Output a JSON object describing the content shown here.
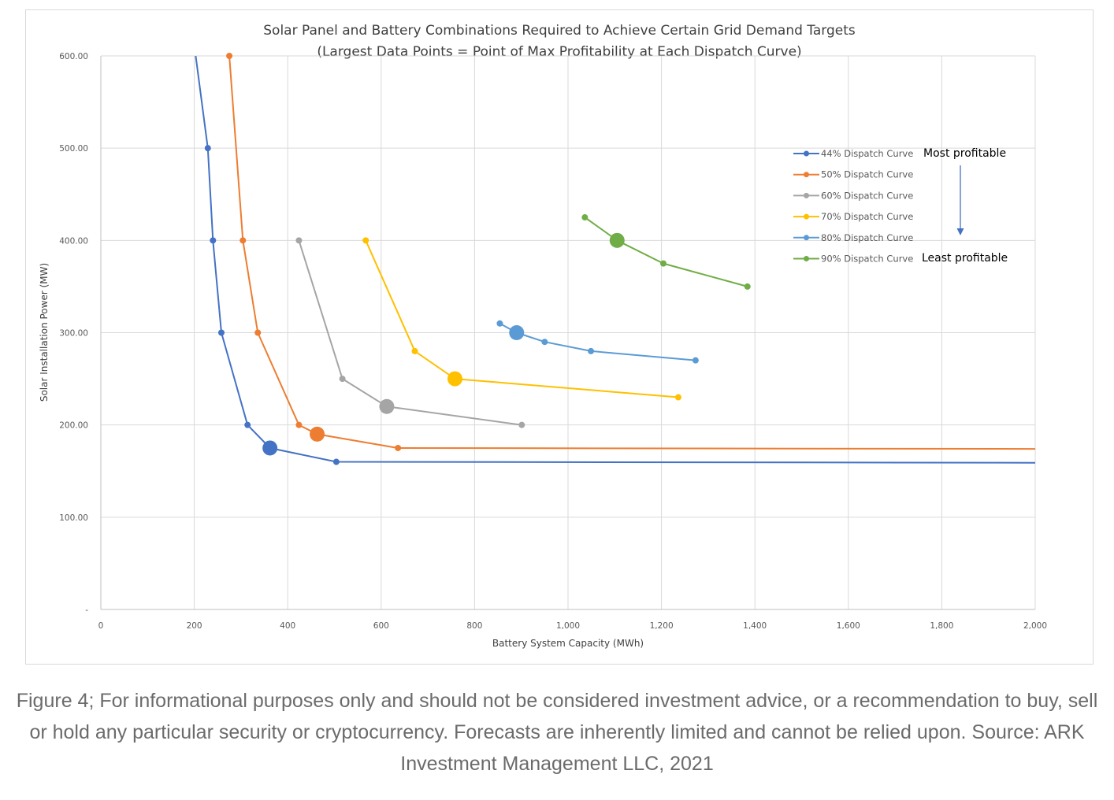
{
  "chart_data": {
    "type": "line",
    "title": "Solar Panel and Battery Combinations Required to Achieve Certain Grid Demand Targets",
    "subtitle": "(Largest Data Points = Point of Max Profitability at Each Dispatch Curve)",
    "xlabel": "Battery System Capacity (MWh)",
    "ylabel": "Solar Installation Power (MW)",
    "xlim": [
      0,
      2000
    ],
    "ylim": [
      0,
      600
    ],
    "x_ticks": [
      0,
      200,
      400,
      600,
      800,
      1000,
      1200,
      1400,
      1600,
      1800,
      2000
    ],
    "x_tick_labels": [
      "0",
      "200",
      "400",
      "600",
      "800",
      "1,000",
      "1,200",
      "1,400",
      "1,600",
      "1,800",
      "2,000"
    ],
    "y_ticks": [
      0,
      100,
      200,
      300,
      400,
      500,
      600
    ],
    "y_tick_labels": [
      "-",
      "100.00",
      "200.00",
      "300.00",
      "400.00",
      "500.00",
      "600.00"
    ],
    "grid": true,
    "legend_position": "right",
    "series": [
      {
        "name": "44% Dispatch Curve",
        "color": "#4472C4",
        "points": [
          [
            203,
            600
          ],
          [
            229,
            500
          ],
          [
            240,
            400
          ],
          [
            258,
            300
          ],
          [
            314,
            200
          ],
          [
            362,
            175
          ],
          [
            504,
            160
          ],
          [
            2000,
            159
          ]
        ],
        "markers": [
          false,
          true,
          true,
          true,
          true,
          true,
          true,
          false
        ],
        "max_profit_index": 5
      },
      {
        "name": "50% Dispatch Curve",
        "color": "#ED7D31",
        "points": [
          [
            275,
            600
          ],
          [
            304,
            400
          ],
          [
            336,
            300
          ],
          [
            424,
            200
          ],
          [
            463,
            190
          ],
          [
            636,
            175
          ],
          [
            2000,
            174
          ]
        ],
        "markers": [
          true,
          true,
          true,
          true,
          true,
          true,
          false
        ],
        "max_profit_index": 4
      },
      {
        "name": "60% Dispatch Curve",
        "color": "#A5A5A5",
        "points": [
          [
            424,
            400
          ],
          [
            517,
            250
          ],
          [
            612,
            220
          ],
          [
            901,
            200
          ]
        ],
        "markers": [
          true,
          true,
          true,
          true
        ],
        "max_profit_index": 2
      },
      {
        "name": "70% Dispatch Curve",
        "color": "#FFC000",
        "points": [
          [
            567,
            400
          ],
          [
            672,
            280
          ],
          [
            758,
            250
          ],
          [
            1236,
            230
          ]
        ],
        "markers": [
          true,
          true,
          true,
          true
        ],
        "max_profit_index": 2
      },
      {
        "name": "80% Dispatch Curve",
        "color": "#5B9BD5",
        "points": [
          [
            854,
            310
          ],
          [
            890,
            300
          ],
          [
            950,
            290
          ],
          [
            1049,
            280
          ],
          [
            1273,
            270
          ]
        ],
        "markers": [
          true,
          true,
          true,
          true,
          true
        ],
        "max_profit_index": 1
      },
      {
        "name": "90% Dispatch Curve",
        "color": "#70AD47",
        "points": [
          [
            1036,
            425
          ],
          [
            1105,
            400
          ],
          [
            1204,
            375
          ],
          [
            1384,
            350
          ]
        ],
        "markers": [
          true,
          true,
          true,
          true
        ],
        "max_profit_index": 1
      }
    ],
    "annotations": {
      "top": "Most profitable",
      "bottom": "Least profitable"
    }
  },
  "caption": "Figure 4; For informational purposes only and should not be considered investment advice, or a recommendation to buy, sell or hold any particular security or cryptocurrency. Forecasts are inherently limited and cannot be relied upon. Source: ARK Investment Management LLC, 2021"
}
